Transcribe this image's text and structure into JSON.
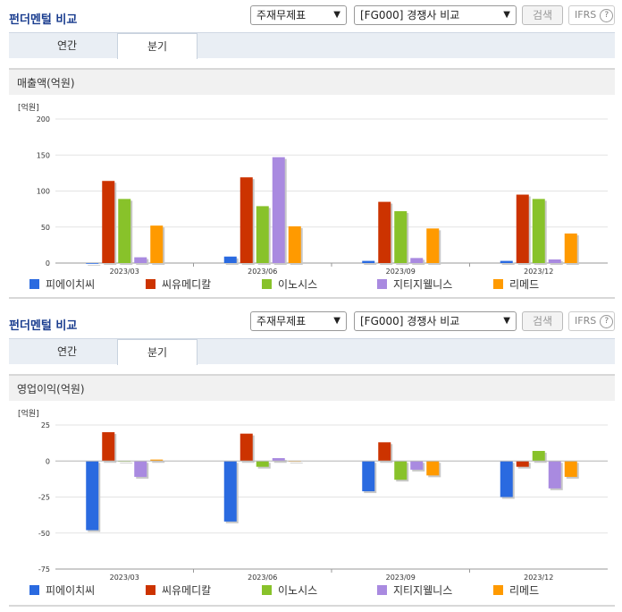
{
  "panels": [
    {
      "title": "펀더멘털 비교",
      "select1": "주재무제표",
      "select2": "[FG000] 경쟁사 비교",
      "search_label": "검색",
      "ifrs_label": "IFRS",
      "help_icon": "?",
      "tabs": [
        {
          "label": "연간"
        },
        {
          "label": "분기",
          "active": true
        }
      ],
      "section_title": "매출액(억원)"
    },
    {
      "title": "펀더멘털 비교",
      "select1": "주재무제표",
      "select2": "[FG000] 경쟁사 비교",
      "search_label": "검색",
      "ifrs_label": "IFRS",
      "help_icon": "?",
      "tabs": [
        {
          "label": "연간"
        },
        {
          "label": "분기",
          "active": true
        }
      ],
      "section_title": "영업이익(억원)"
    }
  ],
  "chart_data": [
    {
      "type": "bar",
      "unit_label": "[억원]",
      "categories": [
        "2023/03",
        "2023/06",
        "2023/09",
        "2023/12"
      ],
      "ylim": [
        0,
        200
      ],
      "yticks": [
        0,
        50,
        100,
        150,
        200
      ],
      "grid": true,
      "legend_position": "bottom",
      "series": [
        {
          "name": "피에이치씨",
          "color": "#2a6ae0",
          "values": [
            0,
            9,
            3,
            3
          ]
        },
        {
          "name": "씨유메디칼",
          "color": "#cc3300",
          "values": [
            114,
            119,
            85,
            95
          ]
        },
        {
          "name": "이노시스",
          "color": "#88c22a",
          "values": [
            89,
            79,
            72,
            89
          ]
        },
        {
          "name": "지티지웰니스",
          "color": "#a98ae0",
          "values": [
            8,
            147,
            7,
            5
          ]
        },
        {
          "name": "리메드",
          "color": "#ff9a00",
          "values": [
            52,
            51,
            48,
            41
          ]
        }
      ]
    },
    {
      "type": "bar",
      "unit_label": "[억원]",
      "categories": [
        "2023/03",
        "2023/06",
        "2023/09",
        "2023/12"
      ],
      "ylim": [
        -75,
        25
      ],
      "yticks": [
        -75,
        -50,
        -25,
        0,
        25
      ],
      "grid": true,
      "legend_position": "bottom",
      "series": [
        {
          "name": "피에이치씨",
          "color": "#2a6ae0",
          "values": [
            -48,
            -42,
            -21,
            -25
          ]
        },
        {
          "name": "씨유메디칼",
          "color": "#cc3300",
          "values": [
            20,
            19,
            13,
            -4
          ]
        },
        {
          "name": "이노시스",
          "color": "#88c22a",
          "values": [
            0,
            -4,
            -13,
            7
          ]
        },
        {
          "name": "지티지웰니스",
          "color": "#a98ae0",
          "values": [
            -11,
            2,
            -6,
            -19
          ]
        },
        {
          "name": "리메드",
          "color": "#ff9a00",
          "values": [
            1,
            0,
            -10,
            -11
          ]
        }
      ]
    }
  ]
}
